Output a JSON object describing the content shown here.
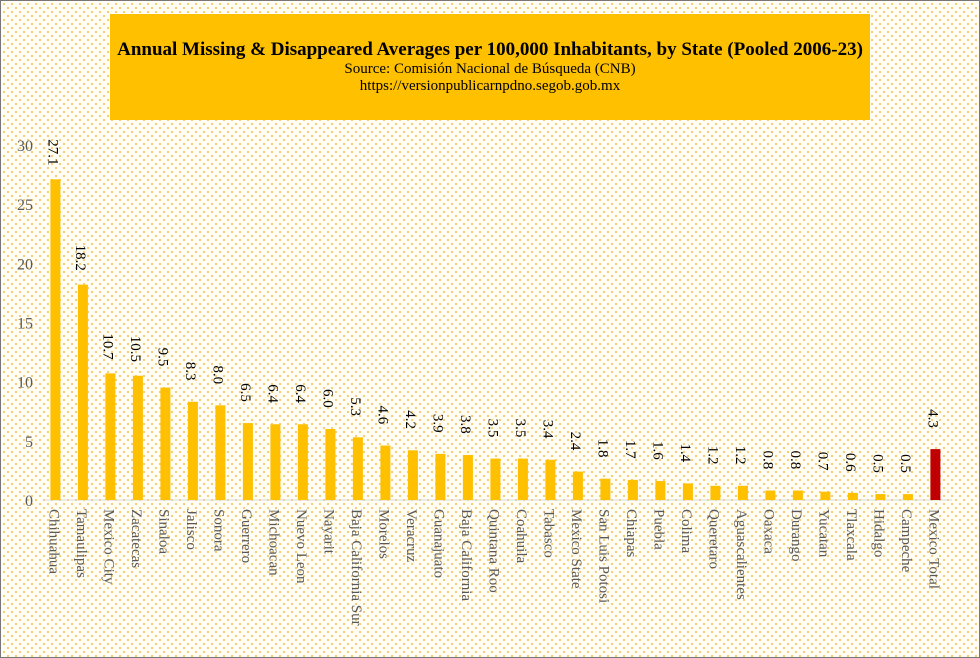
{
  "chart_data": {
    "type": "bar",
    "title": "Annual Missing & Disappeared Averages per 100,000 Inhabitants, by State (Pooled 2006-23)",
    "subtitle_lines": [
      "Source: Comisión Nacional de Búsqueda (CNB)",
      "https://versionpublicarnpdno.segob.gob.mx"
    ],
    "xlabel": "",
    "ylabel": "",
    "ylim": [
      0,
      30
    ],
    "yticks": [
      0,
      5,
      10,
      15,
      20,
      25,
      30
    ],
    "grid": false,
    "categories": [
      "Chihuahua",
      "Tamaulipas",
      "Mexico City",
      "Zacatecas",
      "Sinaloa",
      "Jalisco",
      "Sonora",
      "Guerrero",
      "Michoacan",
      "Nuevo Leon",
      "Nayarit",
      "Baja California Sur",
      "Morelos",
      "Veracruz",
      "Guanajuato",
      "Baja California",
      "Quintana Roo",
      "Coahuila",
      "Tabasco",
      "Mexico State",
      "San Luis Potosi",
      "Chiapas",
      "Puebla",
      "Colima",
      "Queretaro",
      "Aguascalientes",
      "Oaxaca",
      "Durango",
      "Yucatan",
      "Tlaxcala",
      "Hidalgo",
      "Campeche",
      "Mexico Total"
    ],
    "values": [
      27.1,
      18.2,
      10.7,
      10.5,
      9.5,
      8.3,
      8.0,
      6.5,
      6.4,
      6.4,
      6.0,
      5.3,
      4.6,
      4.2,
      3.9,
      3.8,
      3.5,
      3.5,
      3.4,
      2.4,
      1.8,
      1.7,
      1.6,
      1.4,
      1.2,
      1.2,
      0.8,
      0.8,
      0.7,
      0.6,
      0.5,
      0.5,
      4.3
    ],
    "data_labels": [
      "27.1",
      "18.2",
      "10.7",
      "10.5",
      "9.5",
      "8.3",
      "8.0",
      "6.5",
      "6.4",
      "6.4",
      "6.0",
      "5.3",
      "4.6",
      "4.2",
      "3.9",
      "3.8",
      "3.5",
      "3.5",
      "3.4",
      "2.4",
      "1.8",
      "1.7",
      "1.6",
      "1.4",
      "1.2",
      "1.2",
      "0.8",
      "0.8",
      "0.7",
      "0.6",
      "0.5",
      "0.5",
      "4.3"
    ],
    "colors": {
      "bar": "#ffc000",
      "highlight": "#c00000",
      "title_background": "#ffc000"
    },
    "highlight_category": "Mexico Total"
  }
}
